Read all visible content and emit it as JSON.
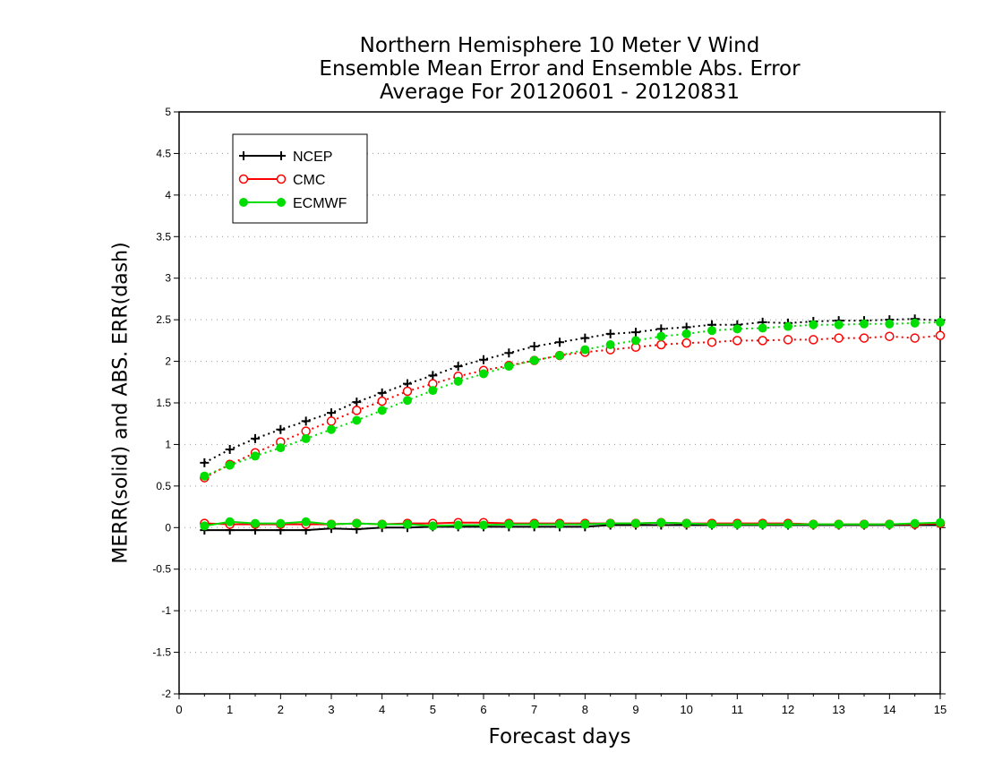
{
  "chart_data": {
    "type": "line",
    "title_lines": [
      "Northern Hemisphere 10 Meter V Wind",
      "Ensemble Mean Error and Ensemble Abs. Error",
      "Average For 20120601 - 20120831"
    ],
    "xlabel": "Forecast days",
    "ylabel": "MERR(solid) and ABS. ERR(dash)",
    "xlim": [
      0,
      15
    ],
    "ylim": [
      -2,
      5
    ],
    "xticks": [
      "0",
      "1",
      "2",
      "3",
      "4",
      "5",
      "6",
      "7",
      "8",
      "9",
      "10",
      "11",
      "12",
      "13",
      "14",
      "15"
    ],
    "yticks": [
      "-2",
      "-1.5",
      "-1",
      "-0.5",
      "0",
      "0.5",
      "1",
      "1.5",
      "2",
      "2.5",
      "3",
      "3.5",
      "4",
      "4.5",
      "5"
    ],
    "grid": "horizontal-dotted",
    "legend_position": "top-left",
    "x": [
      0.5,
      1,
      1.5,
      2,
      2.5,
      3,
      3.5,
      4,
      4.5,
      5,
      5.5,
      6,
      6.5,
      7,
      7.5,
      8,
      8.5,
      9,
      9.5,
      10,
      10.5,
      11,
      11.5,
      12,
      12.5,
      13,
      13.5,
      14,
      14.5,
      15
    ],
    "series": [
      {
        "name": "NCEP",
        "color": "#000000",
        "marker": "plus",
        "abs_err": [
          0.78,
          0.94,
          1.07,
          1.18,
          1.28,
          1.38,
          1.51,
          1.62,
          1.73,
          1.83,
          1.94,
          2.02,
          2.1,
          2.18,
          2.23,
          2.28,
          2.33,
          2.35,
          2.39,
          2.41,
          2.44,
          2.44,
          2.47,
          2.46,
          2.48,
          2.49,
          2.49,
          2.5,
          2.51,
          2.49
        ],
        "mean_err": [
          -0.03,
          -0.03,
          -0.03,
          -0.03,
          -0.03,
          -0.01,
          -0.02,
          0.0,
          0.0,
          0.01,
          0.01,
          0.01,
          0.01,
          0.01,
          0.01,
          0.01,
          0.03,
          0.03,
          0.03,
          0.03,
          0.03,
          0.03,
          0.03,
          0.03,
          0.03,
          0.03,
          0.03,
          0.03,
          0.03,
          0.03
        ]
      },
      {
        "name": "CMC",
        "color": "#ff0000",
        "marker": "open-circle",
        "abs_err": [
          0.6,
          0.76,
          0.9,
          1.03,
          1.16,
          1.28,
          1.41,
          1.52,
          1.64,
          1.73,
          1.82,
          1.89,
          1.95,
          2.01,
          2.07,
          2.11,
          2.14,
          2.17,
          2.2,
          2.22,
          2.23,
          2.25,
          2.25,
          2.26,
          2.26,
          2.28,
          2.28,
          2.3,
          2.28,
          2.31
        ],
        "mean_err": [
          0.05,
          0.04,
          0.04,
          0.04,
          0.04,
          0.04,
          0.05,
          0.04,
          0.05,
          0.05,
          0.06,
          0.06,
          0.05,
          0.05,
          0.05,
          0.05,
          0.05,
          0.05,
          0.06,
          0.05,
          0.05,
          0.05,
          0.05,
          0.05,
          0.04,
          0.04,
          0.04,
          0.04,
          0.04,
          0.05
        ]
      },
      {
        "name": "ECMWF",
        "color": "#00dd00",
        "marker": "filled-circle",
        "abs_err": [
          0.62,
          0.75,
          0.86,
          0.96,
          1.07,
          1.18,
          1.29,
          1.41,
          1.53,
          1.65,
          1.76,
          1.85,
          1.94,
          2.01,
          2.07,
          2.14,
          2.2,
          2.25,
          2.3,
          2.33,
          2.37,
          2.39,
          2.4,
          2.42,
          2.44,
          2.44,
          2.45,
          2.45,
          2.46,
          2.47
        ],
        "mean_err": [
          0.02,
          0.07,
          0.05,
          0.05,
          0.07,
          0.04,
          0.05,
          0.04,
          0.04,
          0.02,
          0.03,
          0.03,
          0.04,
          0.04,
          0.04,
          0.04,
          0.05,
          0.05,
          0.06,
          0.05,
          0.04,
          0.04,
          0.04,
          0.04,
          0.04,
          0.04,
          0.04,
          0.04,
          0.05,
          0.06
        ]
      }
    ]
  }
}
